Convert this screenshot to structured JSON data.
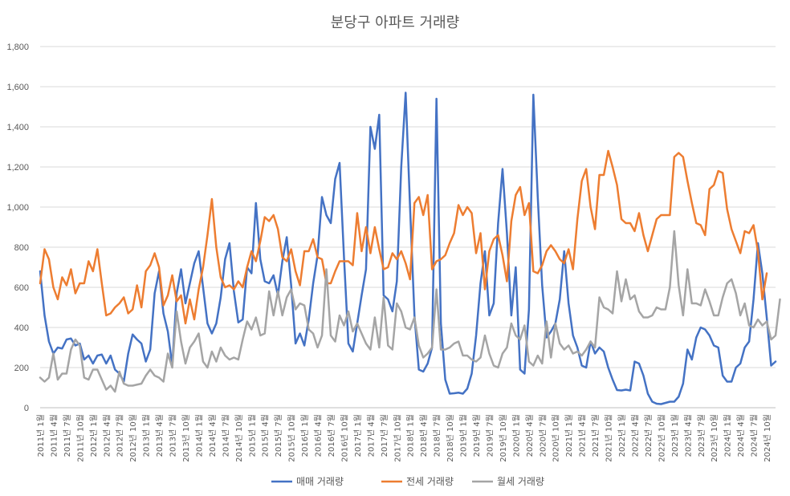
{
  "chart_data": {
    "type": "line",
    "title": "분당구 아파트 거래량",
    "ylim": [
      0,
      1800
    ],
    "yticks": [
      0,
      200,
      400,
      600,
      800,
      1000,
      1200,
      1400,
      1600,
      1800
    ],
    "ytick_labels": [
      "0",
      "200",
      "400",
      "600",
      "800",
      "1,000",
      "1,200",
      "1,400",
      "1,600",
      "1,800"
    ],
    "grid": true,
    "legend_position": "bottom",
    "x_labels": [
      "2011년 1월",
      "2011년 4월",
      "2011년 7월",
      "2011년 10월",
      "2012년 1월",
      "2012년 4월",
      "2012년 7월",
      "2012년 10월",
      "2013년 1월",
      "2013년 4월",
      "2013년 7월",
      "2013년 10월",
      "2014년 1월",
      "2014년 4월",
      "2014년 7월",
      "2014년 10월",
      "2015년 1월",
      "2015년 4월",
      "2015년 7월",
      "2015년 10월",
      "2016년 1월",
      "2016년 4월",
      "2016년 7월",
      "2016년 10월",
      "2017년 1월",
      "2017년 4월",
      "2017년 7월",
      "2017년 10월",
      "2018년 1월",
      "2018년 4월",
      "2018년 7월",
      "2018년 10월",
      "2019년 1월",
      "2019년 4월",
      "2019년 7월",
      "2019년 10월",
      "2020년 1월",
      "2020년 4월",
      "2020년 7월",
      "2020년 10월",
      "2021년 1월",
      "2021년 4월",
      "2021년 7월",
      "2021년 10월",
      "2022년 1월",
      "2022년 4월",
      "2022년 7월",
      "2022년 10월",
      "2023년 1월",
      "2023년 4월",
      "2023년 7월",
      "2023년 10월",
      "2024년 1월",
      "2024년 4월",
      "2024년 7월",
      "2024년 10월"
    ],
    "series": [
      {
        "name": "매매 거래량",
        "color": "#4472C4",
        "values": [
          680,
          460,
          330,
          270,
          300,
          295,
          340,
          345,
          310,
          320,
          240,
          260,
          220,
          260,
          265,
          220,
          260,
          190,
          170,
          130,
          270,
          365,
          340,
          320,
          230,
          290,
          570,
          680,
          470,
          380,
          210,
          570,
          690,
          520,
          620,
          720,
          780,
          600,
          420,
          370,
          420,
          550,
          740,
          820,
          580,
          425,
          440,
          700,
          670,
          1020,
          740,
          630,
          620,
          660,
          560,
          730,
          850,
          610,
          320,
          370,
          310,
          440,
          620,
          760,
          1050,
          960,
          920,
          1140,
          1220,
          750,
          320,
          280,
          420,
          560,
          690,
          1400,
          1290,
          1460,
          560,
          540,
          480,
          630,
          1200,
          1570,
          1000,
          460,
          190,
          180,
          220,
          300,
          1540,
          420,
          140,
          70,
          72,
          75,
          70,
          95,
          170,
          360,
          620,
          780,
          460,
          520,
          920,
          1190,
          870,
          460,
          700,
          190,
          170,
          490,
          1560,
          1050,
          610,
          350,
          380,
          420,
          540,
          780,
          520,
          360,
          300,
          210,
          200,
          330,
          270,
          300,
          280,
          200,
          140,
          88,
          86,
          90,
          86,
          230,
          220,
          160,
          70,
          30,
          20,
          18,
          24,
          30,
          30,
          55,
          120,
          290,
          240,
          350,
          400,
          390,
          360,
          310,
          300,
          160,
          130,
          130,
          200,
          220,
          300,
          330,
          540,
          820,
          670,
          450,
          210,
          230
        ]
      },
      {
        "name": "전세 거래량",
        "color": "#ED7D31",
        "values": [
          620,
          790,
          740,
          600,
          540,
          650,
          610,
          690,
          570,
          620,
          620,
          730,
          680,
          790,
          620,
          460,
          470,
          500,
          520,
          550,
          470,
          490,
          610,
          500,
          680,
          710,
          770,
          700,
          510,
          560,
          660,
          530,
          560,
          420,
          540,
          440,
          590,
          700,
          860,
          1040,
          800,
          650,
          600,
          610,
          590,
          630,
          600,
          700,
          780,
          730,
          830,
          950,
          930,
          960,
          890,
          750,
          730,
          790,
          680,
          610,
          780,
          780,
          840,
          750,
          740,
          620,
          620,
          680,
          730,
          730,
          730,
          710,
          970,
          780,
          900,
          770,
          900,
          790,
          690,
          700,
          770,
          740,
          780,
          720,
          640,
          1020,
          1050,
          960,
          1060,
          690,
          730,
          740,
          760,
          820,
          870,
          1010,
          960,
          1000,
          970,
          770,
          870,
          590,
          780,
          840,
          860,
          760,
          630,
          930,
          1060,
          1100,
          960,
          1020,
          680,
          670,
          710,
          780,
          810,
          780,
          740,
          720,
          790,
          690,
          940,
          1130,
          1190,
          1000,
          890,
          1160,
          1160,
          1280,
          1200,
          1110,
          940,
          920,
          920,
          880,
          970,
          860,
          780,
          860,
          940,
          960,
          960,
          960,
          1250,
          1270,
          1250,
          1130,
          1020,
          920,
          910,
          860,
          1090,
          1110,
          1180,
          1170,
          990,
          890,
          830,
          770,
          880,
          870,
          910,
          780,
          540,
          670
        ]
      },
      {
        "name": "월세 거래량",
        "color": "#A5A5A5",
        "values": [
          150,
          130,
          150,
          270,
          140,
          170,
          170,
          290,
          340,
          310,
          150,
          140,
          190,
          190,
          140,
          90,
          110,
          80,
          180,
          120,
          110,
          110,
          115,
          120,
          160,
          190,
          160,
          150,
          130,
          270,
          200,
          480,
          330,
          220,
          300,
          330,
          370,
          230,
          200,
          280,
          230,
          300,
          260,
          240,
          250,
          240,
          340,
          430,
          390,
          450,
          360,
          370,
          580,
          460,
          580,
          460,
          550,
          590,
          490,
          520,
          510,
          390,
          370,
          300,
          360,
          690,
          360,
          330,
          460,
          410,
          480,
          380,
          420,
          370,
          320,
          290,
          450,
          300,
          550,
          310,
          290,
          520,
          480,
          400,
          390,
          450,
          310,
          250,
          270,
          300,
          590,
          290,
          290,
          300,
          320,
          330,
          260,
          260,
          240,
          230,
          250,
          360,
          270,
          210,
          200,
          270,
          300,
          420,
          360,
          340,
          410,
          230,
          210,
          260,
          220,
          430,
          250,
          420,
          320,
          290,
          310,
          270,
          280,
          260,
          290,
          330,
          300,
          550,
          500,
          490,
          470,
          680,
          530,
          640,
          540,
          560,
          480,
          450,
          450,
          460,
          500,
          490,
          490,
          600,
          880,
          610,
          460,
          690,
          520,
          520,
          510,
          590,
          530,
          460,
          460,
          550,
          620,
          640,
          570,
          460,
          520,
          410,
          400,
          440,
          410,
          430,
          340,
          360,
          540
        ]
      }
    ]
  }
}
